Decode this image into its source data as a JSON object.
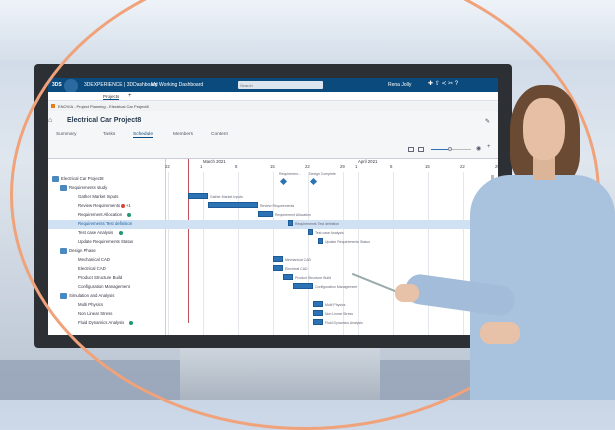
{
  "app": {
    "brand": "3DEXPERIENCE | 3DDashboard",
    "dashboard": "My Working Dashboard",
    "search_placeholder": "Search",
    "user": "Rena Jolly",
    "tab": "Projects",
    "breadcrumb": "ENOVIA - Project Planning - Electrical Car Project8",
    "project_title": "Electrical Car Project8",
    "tabs": [
      "Summary",
      "Tasks",
      "Schedule",
      "Members",
      "Content"
    ],
    "active_tab": "Schedule",
    "accent": "#0b4a7c",
    "bar_color": "#2b73b4"
  },
  "chart_data": {
    "type": "gantt",
    "months": [
      {
        "label": "March 2021",
        "date": "2021-03-01"
      },
      {
        "label": "April 2021",
        "date": "2021-04-01"
      }
    ],
    "ticks": [
      {
        "label": "22",
        "date": "2021-02-22"
      },
      {
        "label": "1",
        "date": "2021-03-01"
      },
      {
        "label": "8",
        "date": "2021-03-08"
      },
      {
        "label": "15",
        "date": "2021-03-15"
      },
      {
        "label": "22",
        "date": "2021-03-22"
      },
      {
        "label": "29",
        "date": "2021-03-29"
      },
      {
        "label": "1",
        "date": "2021-04-01"
      },
      {
        "label": "8",
        "date": "2021-04-08"
      },
      {
        "label": "15",
        "date": "2021-04-15"
      },
      {
        "label": "22",
        "date": "2021-04-22"
      },
      {
        "label": "29",
        "date": "2021-04-29"
      }
    ],
    "today": "2021-02-26",
    "milestones": [
      {
        "label": "Requiremen...",
        "date": "2021-03-17"
      },
      {
        "label": "Design Complete",
        "date": "2021-03-23"
      }
    ],
    "rows": [
      {
        "name": "Electrical Car Project8",
        "level": 0,
        "group": true
      },
      {
        "name": "Requirements study",
        "level": 1,
        "group": true
      },
      {
        "name": "Gather Market Inputs",
        "level": 2,
        "start": "2021-02-26",
        "end": "2021-03-02",
        "bar_label": "Gather Market Inputs"
      },
      {
        "name": "Review Requirements",
        "level": 2,
        "start": "2021-03-02",
        "end": "2021-03-12",
        "bar_label": "Review Requirements",
        "badge": "red",
        "badge_text": "+1"
      },
      {
        "name": "Requirement Allocation",
        "level": 2,
        "start": "2021-03-12",
        "end": "2021-03-15",
        "bar_label": "Requirement Allocation",
        "badge": "green"
      },
      {
        "name": "Requirements Test definition",
        "level": 2,
        "start": "2021-03-18",
        "end": "2021-03-19",
        "bar_label": "Requirements Test definition",
        "selected": true
      },
      {
        "name": "Test case Analysis",
        "level": 2,
        "start": "2021-03-22",
        "end": "2021-03-23",
        "bar_label": "Test case Analysis",
        "badge": "green"
      },
      {
        "name": "Update Requirements Status",
        "level": 2,
        "start": "2021-03-24",
        "end": "2021-03-25",
        "bar_label": "Update Requirements Status"
      },
      {
        "name": "Design Phase",
        "level": 1,
        "group": true
      },
      {
        "name": "Mechanical CAD",
        "level": 2,
        "start": "2021-03-15",
        "end": "2021-03-17",
        "bar_label": "Mechanical CAD"
      },
      {
        "name": "Electrical CAD",
        "level": 2,
        "start": "2021-03-15",
        "end": "2021-03-17",
        "bar_label": "Electrical CAD"
      },
      {
        "name": "Product Structure Build",
        "level": 2,
        "start": "2021-03-17",
        "end": "2021-03-19",
        "bar_label": "Product Structure Build"
      },
      {
        "name": "Configuration Management",
        "level": 2,
        "start": "2021-03-19",
        "end": "2021-03-23",
        "bar_label": "Configuration Management"
      },
      {
        "name": "Simulation and Analysis",
        "level": 1,
        "group": true
      },
      {
        "name": "Multi Physics",
        "level": 2,
        "start": "2021-03-23",
        "end": "2021-03-25",
        "bar_label": "Multi Physics"
      },
      {
        "name": "Non Linear Stress",
        "level": 2,
        "start": "2021-03-23",
        "end": "2021-03-25",
        "bar_label": "Non Linear Stress"
      },
      {
        "name": "Fluid Dynamics Analysis",
        "level": 2,
        "start": "2021-03-23",
        "end": "2021-03-25",
        "bar_label": "Fluid Dynamics Analysis",
        "badge": "green"
      }
    ]
  }
}
